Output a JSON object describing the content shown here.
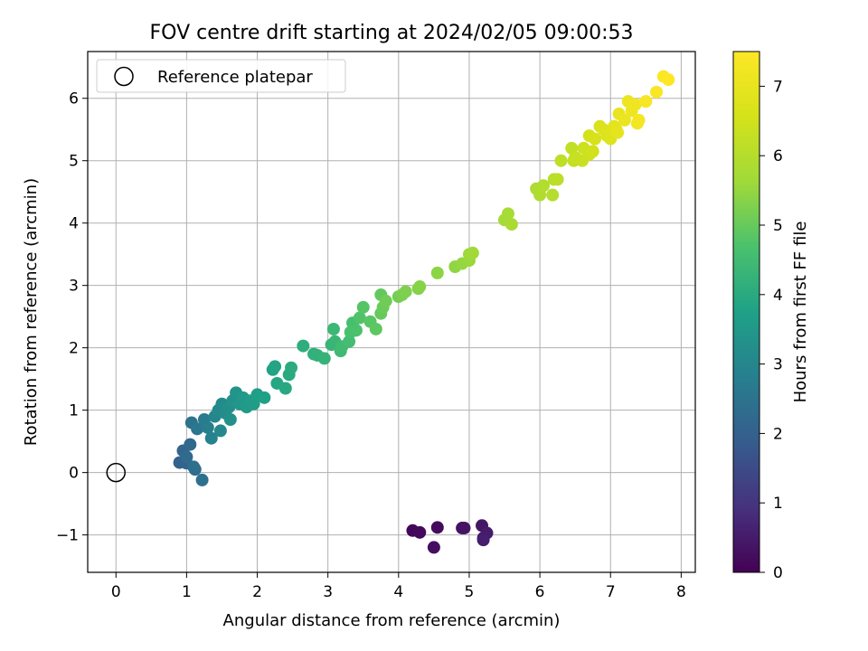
{
  "chart_data": {
    "type": "scatter",
    "title": "FOV centre drift starting at 2024/02/05 09:00:53",
    "xlabel": "Angular distance from reference (arcmin)",
    "ylabel": "Rotation from reference (arcmin)",
    "xlim": [
      -0.4,
      8.2
    ],
    "ylim": [
      -1.6,
      6.75
    ],
    "xticks": [
      0,
      1,
      2,
      3,
      4,
      5,
      6,
      7,
      8
    ],
    "yticks": [
      -1,
      0,
      1,
      2,
      3,
      4,
      5,
      6
    ],
    "grid": true,
    "legend": {
      "position": "top-left",
      "entries": [
        "Reference platepar"
      ]
    },
    "reference_point": {
      "name": "Reference platepar",
      "x": 0,
      "y": 0
    },
    "colorbar": {
      "label": "Hours from first FF file",
      "range": [
        0,
        7.5
      ],
      "ticks": [
        0,
        1,
        2,
        3,
        4,
        5,
        6,
        7
      ],
      "colormap": "viridis"
    },
    "points": [
      [
        4.2,
        -0.93,
        0.1
      ],
      [
        4.3,
        -0.96,
        0.15
      ],
      [
        4.55,
        -0.88,
        0.2
      ],
      [
        4.5,
        -1.2,
        0.25
      ],
      [
        4.9,
        -0.89,
        0.3
      ],
      [
        4.93,
        -0.89,
        0.35
      ],
      [
        5.18,
        -0.85,
        0.4
      ],
      [
        5.2,
        -1.05,
        0.45
      ],
      [
        5.25,
        -0.97,
        0.5
      ],
      [
        5.2,
        -1.08,
        0.55
      ],
      [
        0.9,
        0.16,
        2.0
      ],
      [
        1.0,
        0.15,
        2.1
      ],
      [
        0.95,
        0.35,
        2.15
      ],
      [
        1.05,
        0.45,
        2.2
      ],
      [
        1.0,
        0.25,
        2.25
      ],
      [
        1.12,
        0.05,
        2.3
      ],
      [
        1.1,
        0.09,
        2.35
      ],
      [
        1.22,
        -0.12,
        2.4
      ],
      [
        1.07,
        0.8,
        2.5
      ],
      [
        1.15,
        0.7,
        2.6
      ],
      [
        1.25,
        0.85,
        2.7
      ],
      [
        1.3,
        0.72,
        2.8
      ],
      [
        1.35,
        0.55,
        2.9
      ],
      [
        1.4,
        0.9,
        3.0
      ],
      [
        1.48,
        0.67,
        3.05
      ],
      [
        1.45,
        1.0,
        3.1
      ],
      [
        1.5,
        1.1,
        3.15
      ],
      [
        1.55,
        0.95,
        3.2
      ],
      [
        1.6,
        1.05,
        3.25
      ],
      [
        1.62,
        0.85,
        3.3
      ],
      [
        1.65,
        1.15,
        3.35
      ],
      [
        1.7,
        1.28,
        3.4
      ],
      [
        1.75,
        1.1,
        3.45
      ],
      [
        1.8,
        1.2,
        3.5
      ],
      [
        1.85,
        1.05,
        3.55
      ],
      [
        1.9,
        1.15,
        3.6
      ],
      [
        1.95,
        1.1,
        3.65
      ],
      [
        2.0,
        1.25,
        3.7
      ],
      [
        2.1,
        1.2,
        3.75
      ],
      [
        2.22,
        1.65,
        3.8
      ],
      [
        2.25,
        1.7,
        3.85
      ],
      [
        2.28,
        1.43,
        3.9
      ],
      [
        2.4,
        1.35,
        3.95
      ],
      [
        2.45,
        1.57,
        4.0
      ],
      [
        2.48,
        1.68,
        4.05
      ],
      [
        2.65,
        2.03,
        4.1
      ],
      [
        2.8,
        1.9,
        4.15
      ],
      [
        2.85,
        1.88,
        4.2
      ],
      [
        2.95,
        1.83,
        4.25
      ],
      [
        3.05,
        2.05,
        4.3
      ],
      [
        3.1,
        2.1,
        4.35
      ],
      [
        3.08,
        2.3,
        4.4
      ],
      [
        3.18,
        1.95,
        4.45
      ],
      [
        3.2,
        2.02,
        4.5
      ],
      [
        3.3,
        2.1,
        4.55
      ],
      [
        3.35,
        2.4,
        4.6
      ],
      [
        3.32,
        2.25,
        4.65
      ],
      [
        3.4,
        2.28,
        4.7
      ],
      [
        3.45,
        2.48,
        4.75
      ],
      [
        3.5,
        2.65,
        4.8
      ],
      [
        3.6,
        2.42,
        4.85
      ],
      [
        3.68,
        2.3,
        4.9
      ],
      [
        3.75,
        2.85,
        4.95
      ],
      [
        3.75,
        2.55,
        5.0
      ],
      [
        3.78,
        2.65,
        5.05
      ],
      [
        3.82,
        2.75,
        5.1
      ],
      [
        4.0,
        2.82,
        5.15
      ],
      [
        4.05,
        2.85,
        5.2
      ],
      [
        4.1,
        2.9,
        5.25
      ],
      [
        4.28,
        2.95,
        5.3
      ],
      [
        4.3,
        2.98,
        5.35
      ],
      [
        4.55,
        3.2,
        5.4
      ],
      [
        4.8,
        3.3,
        5.45
      ],
      [
        4.9,
        3.35,
        5.5
      ],
      [
        5.0,
        3.4,
        5.55
      ],
      [
        5.0,
        3.5,
        5.6
      ],
      [
        5.05,
        3.52,
        5.65
      ],
      [
        5.5,
        4.05,
        5.7
      ],
      [
        5.55,
        4.15,
        5.75
      ],
      [
        5.6,
        3.98,
        5.8
      ],
      [
        5.95,
        4.55,
        5.85
      ],
      [
        6.0,
        4.45,
        5.9
      ],
      [
        6.05,
        4.6,
        5.95
      ],
      [
        6.18,
        4.45,
        6.0
      ],
      [
        6.2,
        4.7,
        6.05
      ],
      [
        6.25,
        4.7,
        6.1
      ],
      [
        6.3,
        5.0,
        6.15
      ],
      [
        6.45,
        5.2,
        6.2
      ],
      [
        6.48,
        5.0,
        6.25
      ],
      [
        6.5,
        5.05,
        6.3
      ],
      [
        6.6,
        5.0,
        6.35
      ],
      [
        6.62,
        5.2,
        6.4
      ],
      [
        6.7,
        5.1,
        6.45
      ],
      [
        6.75,
        5.15,
        6.5
      ],
      [
        6.7,
        5.4,
        6.55
      ],
      [
        6.78,
        5.35,
        6.6
      ],
      [
        6.85,
        5.55,
        6.65
      ],
      [
        6.9,
        5.5,
        6.7
      ],
      [
        6.95,
        5.4,
        6.75
      ],
      [
        7.0,
        5.35,
        6.8
      ],
      [
        7.05,
        5.55,
        6.85
      ],
      [
        7.08,
        5.5,
        6.9
      ],
      [
        7.1,
        5.45,
        6.95
      ],
      [
        7.12,
        5.75,
        7.0
      ],
      [
        7.2,
        5.65,
        7.05
      ],
      [
        7.25,
        5.95,
        7.1
      ],
      [
        7.3,
        5.8,
        7.15
      ],
      [
        7.35,
        5.9,
        7.2
      ],
      [
        7.38,
        5.6,
        7.25
      ],
      [
        7.4,
        5.65,
        7.3
      ],
      [
        7.5,
        5.95,
        7.35
      ],
      [
        7.65,
        6.1,
        7.4
      ],
      [
        7.75,
        6.35,
        7.45
      ],
      [
        7.82,
        6.3,
        7.5
      ]
    ]
  }
}
